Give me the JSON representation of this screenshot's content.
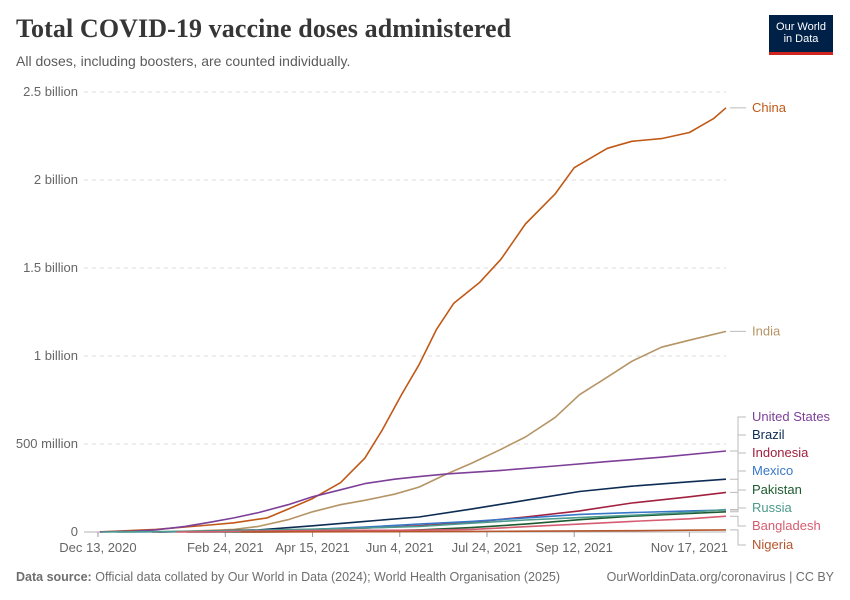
{
  "header": {
    "title": "Total COVID-19 vaccine doses administered",
    "subtitle": "All doses, including boosters, are counted individually."
  },
  "logo": {
    "line1": "Our World",
    "line2": "in Data"
  },
  "footer": {
    "source_label": "Data source:",
    "source_text": "Official data collated by Our World in Data (2024); World Health Organisation (2025)",
    "link": "OurWorldinData.org/coronavirus | CC BY"
  },
  "chart_data": {
    "type": "line",
    "ylim": [
      0,
      2500000000
    ],
    "y_ticks": [
      {
        "value": 0,
        "label": "0"
      },
      {
        "value": 500000000,
        "label": "500 million"
      },
      {
        "value": 1000000000,
        "label": "1 billion"
      },
      {
        "value": 1500000000,
        "label": "1.5 billion"
      },
      {
        "value": 2000000000,
        "label": "2 billion"
      },
      {
        "value": 2500000000,
        "label": "2.5 billion"
      }
    ],
    "x_range": [
      "2020-12-05",
      "2021-12-08"
    ],
    "x_ticks": [
      "2020-12-13",
      "2021-02-24",
      "2021-04-15",
      "2021-06-04",
      "2021-07-24",
      "2021-09-12",
      "2021-11-17"
    ],
    "x_tick_labels": [
      "Dec 13, 2020",
      "Feb 24, 2021",
      "Apr 15, 2021",
      "Jun 4, 2021",
      "Jul 24, 2021",
      "Sep 12, 2021",
      "Nov 17, 2021"
    ],
    "grid": true,
    "series": [
      {
        "name": "China",
        "color": "#c05917",
        "points": [
          [
            "2020-12-15",
            1000000
          ],
          [
            "2021-01-15",
            15000000
          ],
          [
            "2021-02-15",
            40000000
          ],
          [
            "2021-03-01",
            52000000
          ],
          [
            "2021-03-20",
            80000000
          ],
          [
            "2021-04-01",
            130000000
          ],
          [
            "2021-04-15",
            190000000
          ],
          [
            "2021-05-01",
            280000000
          ],
          [
            "2021-05-15",
            420000000
          ],
          [
            "2021-05-25",
            580000000
          ],
          [
            "2021-06-05",
            780000000
          ],
          [
            "2021-06-15",
            950000000
          ],
          [
            "2021-06-25",
            1150000000
          ],
          [
            "2021-07-05",
            1300000000
          ],
          [
            "2021-07-20",
            1420000000
          ],
          [
            "2021-08-01",
            1550000000
          ],
          [
            "2021-08-15",
            1750000000
          ],
          [
            "2021-09-01",
            1920000000
          ],
          [
            "2021-09-12",
            2070000000
          ],
          [
            "2021-10-01",
            2180000000
          ],
          [
            "2021-10-15",
            2220000000
          ],
          [
            "2021-11-01",
            2235000000
          ],
          [
            "2021-11-17",
            2270000000
          ],
          [
            "2021-12-01",
            2350000000
          ],
          [
            "2021-12-08",
            2410000000
          ]
        ]
      },
      {
        "name": "India",
        "color": "#b59465",
        "points": [
          [
            "2021-01-16",
            200000
          ],
          [
            "2021-02-15",
            9000000
          ],
          [
            "2021-03-01",
            15000000
          ],
          [
            "2021-03-15",
            32000000
          ],
          [
            "2021-04-01",
            70000000
          ],
          [
            "2021-04-15",
            115000000
          ],
          [
            "2021-05-01",
            155000000
          ],
          [
            "2021-05-15",
            180000000
          ],
          [
            "2021-06-01",
            215000000
          ],
          [
            "2021-06-15",
            255000000
          ],
          [
            "2021-07-01",
            330000000
          ],
          [
            "2021-07-15",
            390000000
          ],
          [
            "2021-08-01",
            470000000
          ],
          [
            "2021-08-15",
            540000000
          ],
          [
            "2021-09-01",
            650000000
          ],
          [
            "2021-09-15",
            780000000
          ],
          [
            "2021-10-01",
            880000000
          ],
          [
            "2021-10-15",
            970000000
          ],
          [
            "2021-11-01",
            1050000000
          ],
          [
            "2021-11-17",
            1090000000
          ],
          [
            "2021-12-08",
            1140000000
          ]
        ]
      },
      {
        "name": "United States",
        "color": "#7d3f98",
        "points": [
          [
            "2020-12-14",
            500000
          ],
          [
            "2021-01-01",
            4000000
          ],
          [
            "2021-01-15",
            12000000
          ],
          [
            "2021-02-01",
            32000000
          ],
          [
            "2021-02-15",
            55000000
          ],
          [
            "2021-03-01",
            80000000
          ],
          [
            "2021-03-15",
            110000000
          ],
          [
            "2021-04-01",
            155000000
          ],
          [
            "2021-04-15",
            200000000
          ],
          [
            "2021-05-01",
            240000000
          ],
          [
            "2021-05-15",
            275000000
          ],
          [
            "2021-06-01",
            300000000
          ],
          [
            "2021-06-15",
            315000000
          ],
          [
            "2021-07-01",
            330000000
          ],
          [
            "2021-08-01",
            350000000
          ],
          [
            "2021-09-01",
            375000000
          ],
          [
            "2021-10-01",
            400000000
          ],
          [
            "2021-11-01",
            425000000
          ],
          [
            "2021-12-08",
            460000000
          ]
        ]
      },
      {
        "name": "Brazil",
        "color": "#0d2c54",
        "points": [
          [
            "2021-01-17",
            100000
          ],
          [
            "2021-02-15",
            5000000
          ],
          [
            "2021-03-15",
            12000000
          ],
          [
            "2021-04-15",
            35000000
          ],
          [
            "2021-05-15",
            60000000
          ],
          [
            "2021-06-15",
            85000000
          ],
          [
            "2021-07-15",
            130000000
          ],
          [
            "2021-08-15",
            180000000
          ],
          [
            "2021-09-15",
            230000000
          ],
          [
            "2021-10-15",
            260000000
          ],
          [
            "2021-11-17",
            285000000
          ],
          [
            "2021-12-08",
            300000000
          ]
        ]
      },
      {
        "name": "Indonesia",
        "color": "#a2203f",
        "points": [
          [
            "2021-01-13",
            50000
          ],
          [
            "2021-02-15",
            2000000
          ],
          [
            "2021-03-15",
            8000000
          ],
          [
            "2021-04-15",
            15000000
          ],
          [
            "2021-05-15",
            22000000
          ],
          [
            "2021-06-15",
            35000000
          ],
          [
            "2021-07-15",
            55000000
          ],
          [
            "2021-08-15",
            85000000
          ],
          [
            "2021-09-15",
            120000000
          ],
          [
            "2021-10-15",
            165000000
          ],
          [
            "2021-11-17",
            200000000
          ],
          [
            "2021-12-08",
            225000000
          ]
        ]
      },
      {
        "name": "Mexico",
        "color": "#3877c8",
        "points": [
          [
            "2020-12-24",
            10000
          ],
          [
            "2021-02-15",
            2000000
          ],
          [
            "2021-03-15",
            6000000
          ],
          [
            "2021-04-15",
            15000000
          ],
          [
            "2021-05-15",
            28000000
          ],
          [
            "2021-06-15",
            45000000
          ],
          [
            "2021-07-15",
            60000000
          ],
          [
            "2021-08-15",
            80000000
          ],
          [
            "2021-09-15",
            100000000
          ],
          [
            "2021-10-15",
            110000000
          ],
          [
            "2021-11-17",
            120000000
          ],
          [
            "2021-12-08",
            125000000
          ]
        ]
      },
      {
        "name": "Pakistan",
        "color": "#1d5a2f",
        "points": [
          [
            "2021-02-02",
            10000
          ],
          [
            "2021-03-15",
            500000
          ],
          [
            "2021-04-15",
            2000000
          ],
          [
            "2021-05-15",
            5000000
          ],
          [
            "2021-06-15",
            12000000
          ],
          [
            "2021-07-15",
            25000000
          ],
          [
            "2021-08-15",
            45000000
          ],
          [
            "2021-09-15",
            70000000
          ],
          [
            "2021-10-15",
            90000000
          ],
          [
            "2021-11-17",
            105000000
          ],
          [
            "2021-12-08",
            115000000
          ]
        ]
      },
      {
        "name": "Russia",
        "color": "#4c9b8c",
        "points": [
          [
            "2020-12-15",
            50000
          ],
          [
            "2021-01-15",
            1500000
          ],
          [
            "2021-02-15",
            5000000
          ],
          [
            "2021-03-15",
            10000000
          ],
          [
            "2021-04-15",
            16000000
          ],
          [
            "2021-05-15",
            23000000
          ],
          [
            "2021-06-15",
            32000000
          ],
          [
            "2021-07-15",
            50000000
          ],
          [
            "2021-08-15",
            68000000
          ],
          [
            "2021-09-15",
            82000000
          ],
          [
            "2021-10-15",
            95000000
          ],
          [
            "2021-11-17",
            112000000
          ],
          [
            "2021-12-08",
            128000000
          ]
        ]
      },
      {
        "name": "Bangladesh",
        "color": "#d65c71",
        "points": [
          [
            "2021-01-27",
            10000
          ],
          [
            "2021-02-15",
            1000000
          ],
          [
            "2021-03-15",
            5000000
          ],
          [
            "2021-04-15",
            8000000
          ],
          [
            "2021-05-15",
            9500000
          ],
          [
            "2021-06-15",
            10000000
          ],
          [
            "2021-07-15",
            15000000
          ],
          [
            "2021-08-15",
            30000000
          ],
          [
            "2021-09-15",
            45000000
          ],
          [
            "2021-10-15",
            60000000
          ],
          [
            "2021-11-17",
            75000000
          ],
          [
            "2021-12-08",
            90000000
          ]
        ]
      },
      {
        "name": "Nigeria",
        "color": "#b5562c",
        "points": [
          [
            "2021-03-05",
            10000
          ],
          [
            "2021-04-15",
            1000000
          ],
          [
            "2021-05-15",
            1800000
          ],
          [
            "2021-06-15",
            2500000
          ],
          [
            "2021-07-15",
            3500000
          ],
          [
            "2021-08-15",
            4500000
          ],
          [
            "2021-09-15",
            6000000
          ],
          [
            "2021-10-15",
            7500000
          ],
          [
            "2021-11-17",
            10000000
          ],
          [
            "2021-12-08",
            12000000
          ]
        ]
      }
    ]
  }
}
